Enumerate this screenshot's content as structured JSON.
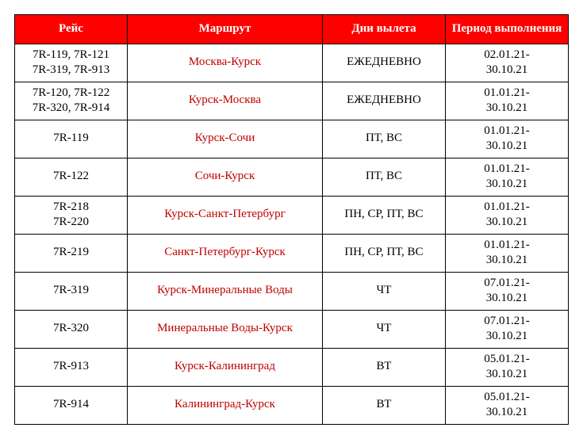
{
  "table": {
    "header_bg": "#ff0000",
    "header_color": "#ffffff",
    "route_color": "#c00000",
    "text_color": "#000000",
    "border_color": "#000000",
    "columns": [
      "Рейс",
      "Маршрут",
      "Дни вылета",
      "Период выполнения"
    ],
    "rows": [
      {
        "flight": "7R-119, 7R-121\n7R-319, 7R-913",
        "route": "Москва-Курск",
        "days": "ЕЖЕДНЕВНО",
        "period": "02.01.21-\n30.10.21"
      },
      {
        "flight": "7R-120, 7R-122\n7R-320, 7R-914",
        "route": "Курск-Москва",
        "days": "ЕЖЕДНЕВНО",
        "period": "01.01.21-\n30.10.21"
      },
      {
        "flight": "7R-119",
        "route": "Курск-Сочи",
        "days": "ПТ, ВС",
        "period": "01.01.21-\n30.10.21"
      },
      {
        "flight": "7R-122",
        "route": "Сочи-Курск",
        "days": "ПТ, ВС",
        "period": "01.01.21-\n30.10.21"
      },
      {
        "flight": "7R-218\n7R-220",
        "route": "Курск-Санкт-Петербург",
        "days": "ПН, СР, ПТ, ВС",
        "period": "01.01.21-\n30.10.21"
      },
      {
        "flight": "7R-219",
        "route": "Санкт-Петербург-Курск",
        "days": "ПН, СР, ПТ, ВС",
        "period": "01.01.21-\n30.10.21"
      },
      {
        "flight": "7R-319",
        "route": "Курск-Минеральные Воды",
        "days": "ЧТ",
        "period": "07.01.21-\n30.10.21"
      },
      {
        "flight": "7R-320",
        "route": "Минеральные Воды-Курск",
        "days": "ЧТ",
        "period": "07.01.21-\n30.10.21"
      },
      {
        "flight": "7R-913",
        "route": "Курск-Калининград",
        "days": "ВТ",
        "period": "05.01.21-\n30.10.21"
      },
      {
        "flight": "7R-914",
        "route": "Калининград-Курск",
        "days": "ВТ",
        "period": "05.01.21-\n30.10.21"
      }
    ]
  }
}
